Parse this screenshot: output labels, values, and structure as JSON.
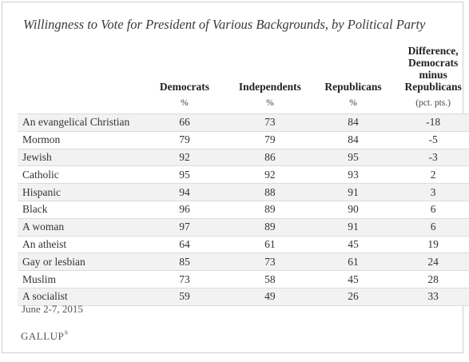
{
  "title": "Willingness to Vote for President of Various Backgrounds, by Political Party",
  "columns": {
    "democrats": "Democrats",
    "independents": "Independents",
    "republicans": "Republicans",
    "difference": [
      "Difference,",
      "Democrats",
      "minus",
      "Republicans"
    ]
  },
  "units": {
    "democrats": "%",
    "independents": "%",
    "republicans": "%",
    "difference": "(pct. pts.)"
  },
  "chart_data": {
    "type": "table",
    "title": "Willingness to Vote for President of Various Backgrounds, by Political Party",
    "columns": [
      "Democrats",
      "Independents",
      "Republicans",
      "Difference, Democrats minus Republicans"
    ],
    "rows": [
      {
        "label": "An evangelical Christian",
        "values": [
          "66",
          "73",
          "84",
          "-18"
        ]
      },
      {
        "label": "Mormon",
        "values": [
          "79",
          "79",
          "84",
          "-5"
        ]
      },
      {
        "label": "Jewish",
        "values": [
          "92",
          "86",
          "95",
          "-3"
        ]
      },
      {
        "label": "Catholic",
        "values": [
          "95",
          "92",
          "93",
          "2"
        ]
      },
      {
        "label": "Hispanic",
        "values": [
          "94",
          "88",
          "91",
          "3"
        ]
      },
      {
        "label": "Black",
        "values": [
          "96",
          "89",
          "90",
          "6"
        ]
      },
      {
        "label": "A woman",
        "values": [
          "97",
          "89",
          "91",
          "6"
        ]
      },
      {
        "label": "An atheist",
        "values": [
          "64",
          "61",
          "45",
          "19"
        ]
      },
      {
        "label": "Gay or lesbian",
        "values": [
          "85",
          "73",
          "61",
          "24"
        ]
      },
      {
        "label": "Muslim",
        "values": [
          "73",
          "58",
          "45",
          "28"
        ]
      },
      {
        "label": "A socialist",
        "values": [
          "59",
          "49",
          "26",
          "33"
        ]
      }
    ]
  },
  "footer": {
    "date": "June 2-7, 2015",
    "logo": "GALLUP",
    "trademark": "®"
  }
}
